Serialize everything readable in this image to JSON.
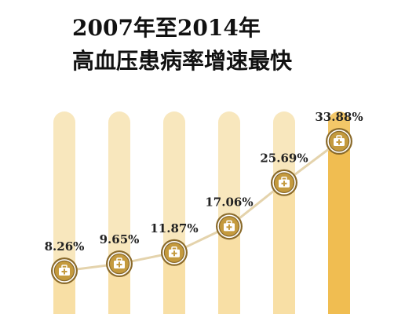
{
  "title_line1": "2007年至2014年",
  "title_line2": "高血压患病率增速最快",
  "colors": {
    "track": "#f8e7bd",
    "track_highlight": "#f3c768",
    "line": "#e4d3ac",
    "medal_outer": "#8a6a2a",
    "medal_ring": "#ffffff",
    "medal_inner": "#c49a3e",
    "icon": "#ffffff",
    "label": "#222222"
  },
  "icon_name": "medical-kit-icon",
  "chart_data": {
    "type": "line",
    "title": "2007年至2014年 高血压患病率增速最快",
    "categories": [
      "",
      "",
      "",
      "",
      "",
      ""
    ],
    "values": [
      8.26,
      9.65,
      11.87,
      17.06,
      25.69,
      33.88
    ],
    "value_labels": [
      "8.26%",
      "9.65%",
      "11.87%",
      "17.06%",
      "25.69%",
      "33.88%"
    ],
    "unit": "%",
    "xlabel": "",
    "ylabel": "",
    "ylim": [
      8.26,
      33.88
    ],
    "grid": false,
    "legend": "none"
  }
}
